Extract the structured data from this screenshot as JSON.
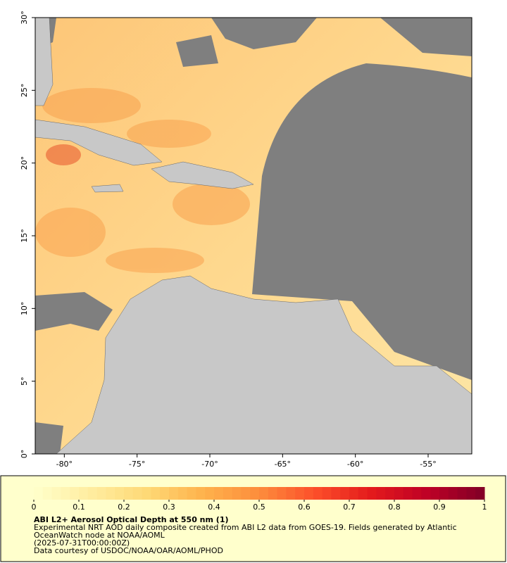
{
  "map": {
    "xlim": [
      -82,
      -52
    ],
    "ylim": [
      0,
      30
    ],
    "xticks": [
      {
        "value": -80,
        "label": "-80°"
      },
      {
        "value": -75,
        "label": "-75°"
      },
      {
        "value": -70,
        "label": "-70°"
      },
      {
        "value": -65,
        "label": "-65°"
      },
      {
        "value": -60,
        "label": "-60°"
      },
      {
        "value": -55,
        "label": "-55°"
      }
    ],
    "yticks": [
      {
        "value": 0,
        "label": "0°"
      },
      {
        "value": 5,
        "label": "5°"
      },
      {
        "value": 10,
        "label": "10°"
      },
      {
        "value": 15,
        "label": "15°"
      },
      {
        "value": 20,
        "label": "20°"
      },
      {
        "value": 25,
        "label": "25°"
      },
      {
        "value": 30,
        "label": "30°"
      }
    ]
  },
  "colorbar": {
    "lim": [
      0,
      1
    ],
    "ticks": [
      0,
      0.1,
      0.2,
      0.3,
      0.4,
      0.5,
      0.6,
      0.7,
      0.8,
      0.9,
      1
    ],
    "colors": [
      "#ffffcc",
      "#ffeda0",
      "#fed976",
      "#feb24c",
      "#fd8d3c",
      "#fc4e2a",
      "#e31a1c",
      "#bd0026",
      "#800026"
    ]
  },
  "caption": {
    "title": "ABI L2+ Aerosol Optical Depth at 550 nm (1)",
    "lines": [
      "Experimental NRT AOD daily composite created from ABI L2 data from GOES-19. Fields generated by Atlantic",
      "OceanWatch node at NOAA/AOML",
      "(2025-07-31T00:00:00Z)",
      "Data courtesy of USDOC/NOAA/OAR/AOML/PHOD"
    ]
  }
}
